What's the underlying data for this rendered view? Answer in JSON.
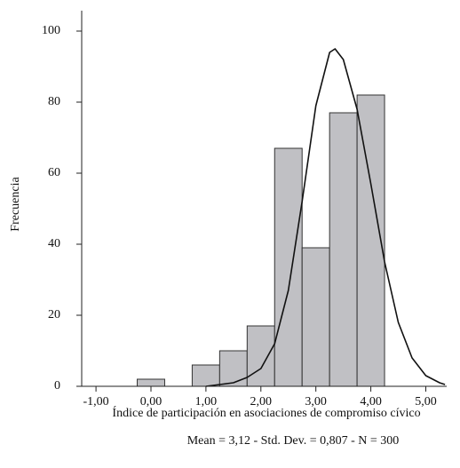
{
  "chart_data": {
    "type": "histogram",
    "bins": [
      -0.25,
      0.25,
      0.75,
      1.25,
      1.75,
      2.25,
      2.75,
      3.25,
      3.75,
      4.25
    ],
    "values": [
      2,
      0,
      6,
      10,
      17,
      67,
      39,
      77,
      82
    ],
    "color": "#c0c0c4",
    "curve": {
      "x": [
        1.0,
        1.25,
        1.5,
        1.75,
        2.0,
        2.25,
        2.5,
        2.75,
        3.0,
        3.25,
        3.35,
        3.5,
        3.75,
        4.0,
        4.25,
        4.5,
        4.75,
        5.0,
        5.25,
        5.35
      ],
      "y": [
        0,
        0.5,
        1,
        2.5,
        5,
        12,
        27,
        52,
        79,
        94,
        95,
        92,
        78,
        57,
        35,
        18,
        8,
        3,
        1,
        0.5
      ]
    },
    "xlim": [
      -1.26,
      5.38
    ],
    "ylim": [
      0,
      105.75
    ],
    "xticks": [
      {
        "value": -1,
        "label": "-1,00"
      },
      {
        "value": 0,
        "label": "0,00"
      },
      {
        "value": 1,
        "label": "1,00"
      },
      {
        "value": 2,
        "label": "2,00"
      },
      {
        "value": 3,
        "label": "3,00"
      },
      {
        "value": 4,
        "label": "4,00"
      },
      {
        "value": 5,
        "label": "5,00"
      }
    ],
    "yticks": [
      0,
      20,
      40,
      60,
      80,
      100
    ],
    "y_label": "Frecuencia",
    "x_label": "Índice de participación en asociaciones de compromiso cívico",
    "footnote": "Mean = 3,12 - Std. Dev. = 0,807 - N = 300"
  }
}
